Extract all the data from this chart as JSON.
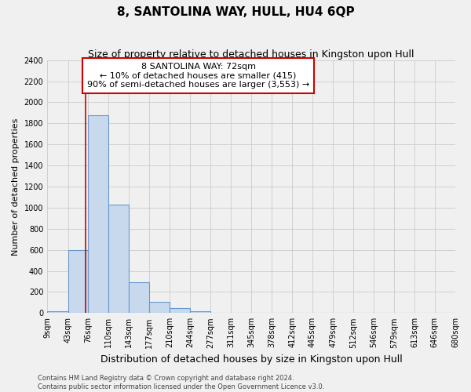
{
  "title": "8, SANTOLINA WAY, HULL, HU4 6QP",
  "subtitle": "Size of property relative to detached houses in Kingston upon Hull",
  "xlabel": "Distribution of detached houses by size in Kingston upon Hull",
  "ylabel": "Number of detached properties",
  "bin_edges": [
    9,
    43,
    76,
    110,
    143,
    177,
    210,
    244,
    277,
    311,
    345,
    378,
    412,
    445,
    479,
    512,
    546,
    579,
    613,
    646,
    680
  ],
  "bin_labels": [
    "9sqm",
    "43sqm",
    "76sqm",
    "110sqm",
    "143sqm",
    "177sqm",
    "210sqm",
    "244sqm",
    "277sqm",
    "311sqm",
    "345sqm",
    "378sqm",
    "412sqm",
    "445sqm",
    "479sqm",
    "512sqm",
    "546sqm",
    "579sqm",
    "613sqm",
    "646sqm",
    "680sqm"
  ],
  "bar_heights": [
    20,
    600,
    1880,
    1030,
    290,
    110,
    45,
    20,
    0,
    0,
    0,
    0,
    0,
    0,
    0,
    0,
    0,
    0,
    0,
    0
  ],
  "bar_color": "#c8d9ee",
  "bar_edge_color": "#6699cc",
  "vline_x": 72,
  "vline_color": "#cc0000",
  "ylim": [
    0,
    2400
  ],
  "yticks": [
    0,
    200,
    400,
    600,
    800,
    1000,
    1200,
    1400,
    1600,
    1800,
    2000,
    2200,
    2400
  ],
  "annotation_title": "8 SANTOLINA WAY: 72sqm",
  "annotation_line1": "← 10% of detached houses are smaller (415)",
  "annotation_line2": "90% of semi-detached houses are larger (3,553) →",
  "annotation_box_color": "#ffffff",
  "annotation_box_edge": "#cc0000",
  "footer_line1": "Contains HM Land Registry data © Crown copyright and database right 2024.",
  "footer_line2": "Contains public sector information licensed under the Open Government Licence v3.0.",
  "grid_color": "#cccccc",
  "background_color": "#f0f0f0",
  "title_fontsize": 11,
  "subtitle_fontsize": 9,
  "ylabel_fontsize": 8,
  "xlabel_fontsize": 9,
  "tick_fontsize": 7,
  "annot_fontsize": 8,
  "footer_fontsize": 6
}
